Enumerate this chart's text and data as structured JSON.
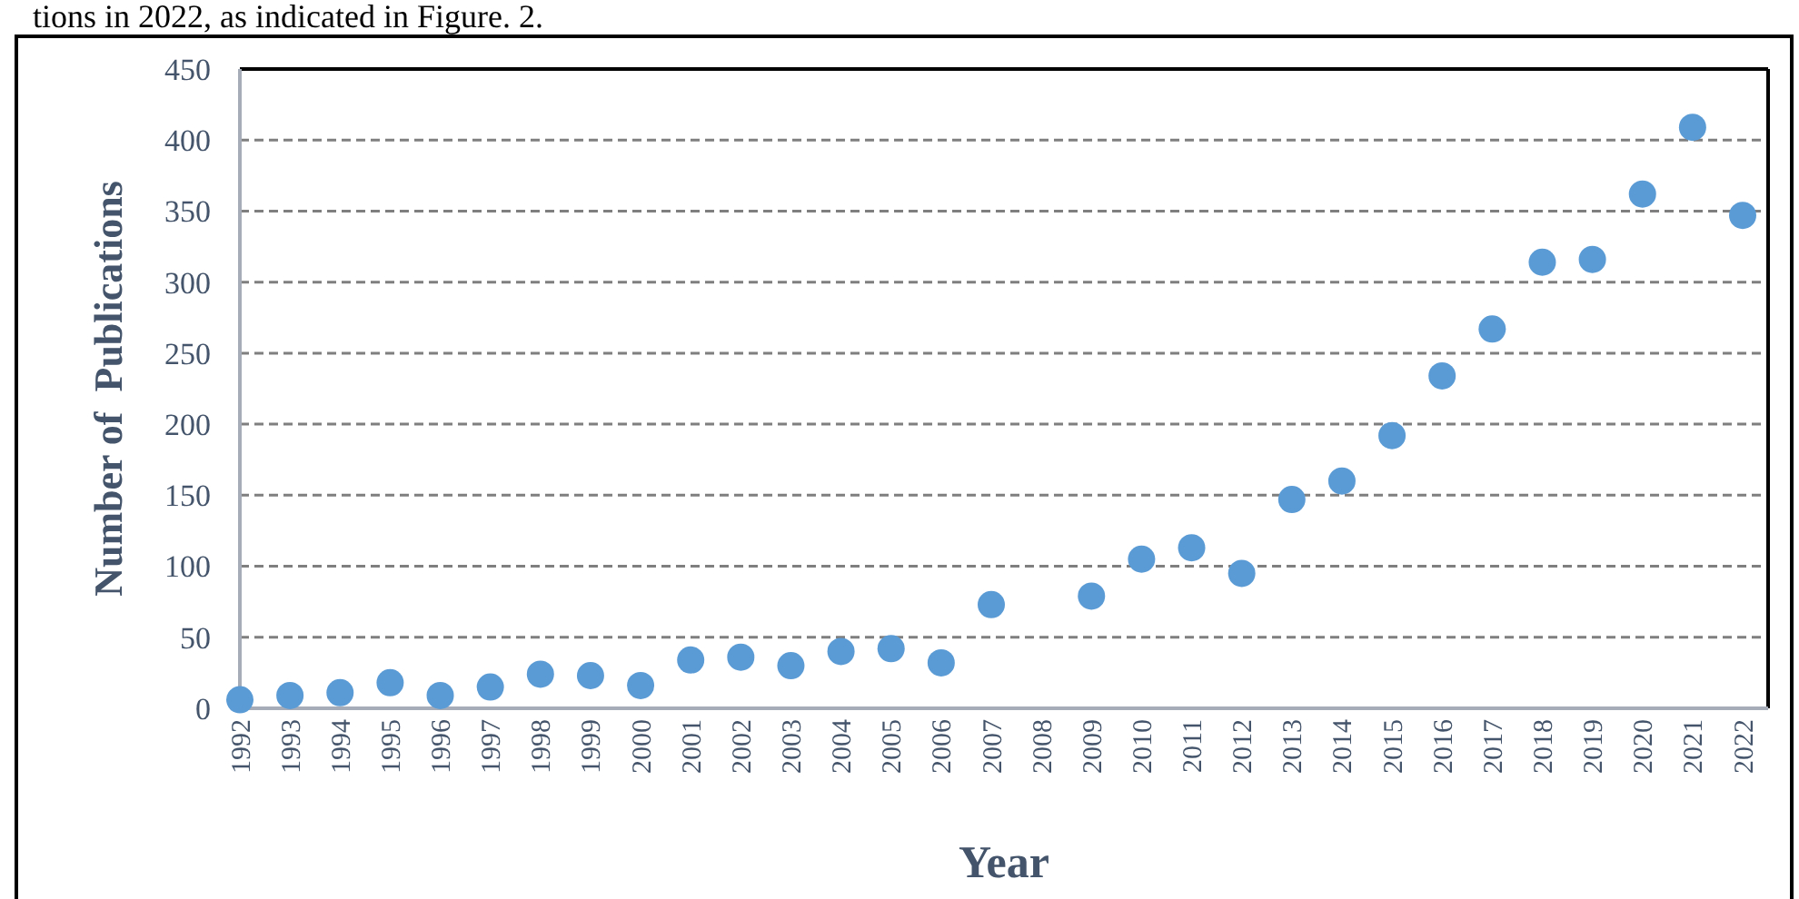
{
  "chart_data": {
    "type": "scatter",
    "xlabel": "Year",
    "ylabel": "Number of  Publications",
    "annotations": [
      "tions in 2022, as indicated in Figure. 2."
    ],
    "categories": [
      "1992",
      "1993",
      "1994",
      "1995",
      "1996",
      "1997",
      "1998",
      "1999",
      "2000",
      "2001",
      "2002",
      "2003",
      "2004",
      "2005",
      "2006",
      "2007",
      "2008",
      "2009",
      "2010",
      "2011",
      "2012",
      "2013",
      "2014",
      "2015",
      "2016",
      "2017",
      "2018",
      "2019",
      "2020",
      "2021",
      "2022"
    ],
    "series": [
      {
        "color": "#5b9bd5",
        "values": [
          6,
          9,
          11,
          18,
          9,
          15,
          24,
          23,
          16,
          34,
          36,
          30,
          40,
          42,
          32,
          73,
          null,
          79,
          105,
          113,
          95,
          147,
          160,
          192,
          234,
          267,
          314,
          316,
          362,
          409,
          347
        ]
      }
    ],
    "ylim": [
      0,
      450
    ],
    "yticks": [
      0,
      50,
      100,
      150,
      200,
      250,
      300,
      350,
      400,
      450
    ],
    "grid": "y",
    "marker": "circle"
  }
}
